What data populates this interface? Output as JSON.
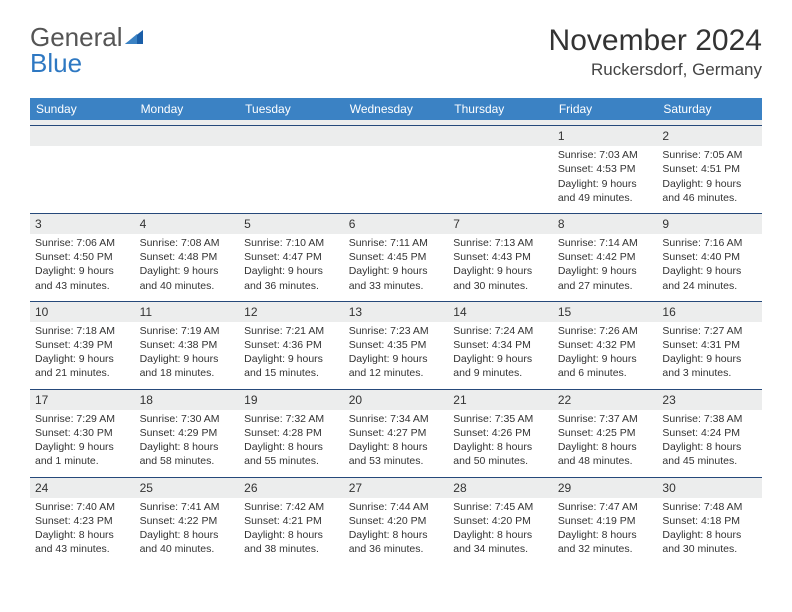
{
  "brand": {
    "part1": "General",
    "part2": "Blue"
  },
  "title": "November 2024",
  "subtitle": "Ruckersdorf, Germany",
  "colors": {
    "header_bg": "#3b82c4",
    "header_text": "#ffffff",
    "rule": "#26497a",
    "daynum_bg": "#eceded",
    "text": "#333333"
  },
  "dow": [
    "Sunday",
    "Monday",
    "Tuesday",
    "Wednesday",
    "Thursday",
    "Friday",
    "Saturday"
  ],
  "weeks": [
    [
      null,
      null,
      null,
      null,
      null,
      {
        "n": "1",
        "sunrise": "7:03 AM",
        "sunset": "4:53 PM",
        "day": "9 hours and 49 minutes."
      },
      {
        "n": "2",
        "sunrise": "7:05 AM",
        "sunset": "4:51 PM",
        "day": "9 hours and 46 minutes."
      }
    ],
    [
      {
        "n": "3",
        "sunrise": "7:06 AM",
        "sunset": "4:50 PM",
        "day": "9 hours and 43 minutes."
      },
      {
        "n": "4",
        "sunrise": "7:08 AM",
        "sunset": "4:48 PM",
        "day": "9 hours and 40 minutes."
      },
      {
        "n": "5",
        "sunrise": "7:10 AM",
        "sunset": "4:47 PM",
        "day": "9 hours and 36 minutes."
      },
      {
        "n": "6",
        "sunrise": "7:11 AM",
        "sunset": "4:45 PM",
        "day": "9 hours and 33 minutes."
      },
      {
        "n": "7",
        "sunrise": "7:13 AM",
        "sunset": "4:43 PM",
        "day": "9 hours and 30 minutes."
      },
      {
        "n": "8",
        "sunrise": "7:14 AM",
        "sunset": "4:42 PM",
        "day": "9 hours and 27 minutes."
      },
      {
        "n": "9",
        "sunrise": "7:16 AM",
        "sunset": "4:40 PM",
        "day": "9 hours and 24 minutes."
      }
    ],
    [
      {
        "n": "10",
        "sunrise": "7:18 AM",
        "sunset": "4:39 PM",
        "day": "9 hours and 21 minutes."
      },
      {
        "n": "11",
        "sunrise": "7:19 AM",
        "sunset": "4:38 PM",
        "day": "9 hours and 18 minutes."
      },
      {
        "n": "12",
        "sunrise": "7:21 AM",
        "sunset": "4:36 PM",
        "day": "9 hours and 15 minutes."
      },
      {
        "n": "13",
        "sunrise": "7:23 AM",
        "sunset": "4:35 PM",
        "day": "9 hours and 12 minutes."
      },
      {
        "n": "14",
        "sunrise": "7:24 AM",
        "sunset": "4:34 PM",
        "day": "9 hours and 9 minutes."
      },
      {
        "n": "15",
        "sunrise": "7:26 AM",
        "sunset": "4:32 PM",
        "day": "9 hours and 6 minutes."
      },
      {
        "n": "16",
        "sunrise": "7:27 AM",
        "sunset": "4:31 PM",
        "day": "9 hours and 3 minutes."
      }
    ],
    [
      {
        "n": "17",
        "sunrise": "7:29 AM",
        "sunset": "4:30 PM",
        "day": "9 hours and 1 minute."
      },
      {
        "n": "18",
        "sunrise": "7:30 AM",
        "sunset": "4:29 PM",
        "day": "8 hours and 58 minutes."
      },
      {
        "n": "19",
        "sunrise": "7:32 AM",
        "sunset": "4:28 PM",
        "day": "8 hours and 55 minutes."
      },
      {
        "n": "20",
        "sunrise": "7:34 AM",
        "sunset": "4:27 PM",
        "day": "8 hours and 53 minutes."
      },
      {
        "n": "21",
        "sunrise": "7:35 AM",
        "sunset": "4:26 PM",
        "day": "8 hours and 50 minutes."
      },
      {
        "n": "22",
        "sunrise": "7:37 AM",
        "sunset": "4:25 PM",
        "day": "8 hours and 48 minutes."
      },
      {
        "n": "23",
        "sunrise": "7:38 AM",
        "sunset": "4:24 PM",
        "day": "8 hours and 45 minutes."
      }
    ],
    [
      {
        "n": "24",
        "sunrise": "7:40 AM",
        "sunset": "4:23 PM",
        "day": "8 hours and 43 minutes."
      },
      {
        "n": "25",
        "sunrise": "7:41 AM",
        "sunset": "4:22 PM",
        "day": "8 hours and 40 minutes."
      },
      {
        "n": "26",
        "sunrise": "7:42 AM",
        "sunset": "4:21 PM",
        "day": "8 hours and 38 minutes."
      },
      {
        "n": "27",
        "sunrise": "7:44 AM",
        "sunset": "4:20 PM",
        "day": "8 hours and 36 minutes."
      },
      {
        "n": "28",
        "sunrise": "7:45 AM",
        "sunset": "4:20 PM",
        "day": "8 hours and 34 minutes."
      },
      {
        "n": "29",
        "sunrise": "7:47 AM",
        "sunset": "4:19 PM",
        "day": "8 hours and 32 minutes."
      },
      {
        "n": "30",
        "sunrise": "7:48 AM",
        "sunset": "4:18 PM",
        "day": "8 hours and 30 minutes."
      }
    ]
  ],
  "labels": {
    "sunrise": "Sunrise: ",
    "sunset": "Sunset: ",
    "daylight": "Daylight: "
  }
}
